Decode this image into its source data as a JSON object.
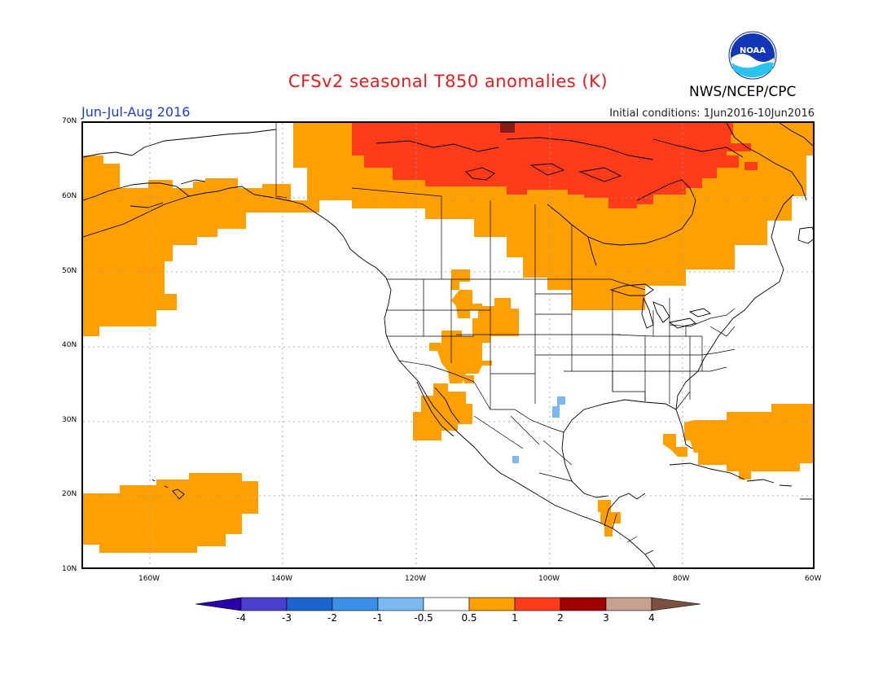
{
  "header": {
    "title": "CFSv2 seasonal T850 anomalies (K)",
    "title_color": "#e11d1d",
    "agency": "NWS/NCEP/CPC",
    "logo_text": "NOAA",
    "period": "Jun-Jul-Aug 2016",
    "period_color": "#1a3fd6",
    "initial_conditions": "Initial conditions: 1Jun2016-10Jun2016"
  },
  "map": {
    "lat_ticks": [
      "70N",
      "60N",
      "50N",
      "40N",
      "30N",
      "20N",
      "10N"
    ],
    "lon_ticks": [
      "160W",
      "140W",
      "120W",
      "100W",
      "80W",
      "60W"
    ],
    "lat_range": [
      10,
      70
    ],
    "lon_range": [
      -170,
      -60
    ],
    "regions": [
      {
        "name": "canada-arctic-warm",
        "class": "0.5 to 1"
      },
      {
        "name": "northern-canada-strong-warm",
        "class": "1 to 2"
      },
      {
        "name": "alaska-pacific-warm",
        "class": "0.5 to 1"
      },
      {
        "name": "hawaii-warm",
        "class": "0.5 to 1"
      },
      {
        "name": "atlantic-warm",
        "class": "0.5 to 1"
      },
      {
        "name": "western-us-warm",
        "class": "0.5 to 1"
      },
      {
        "name": "central-america-warm",
        "class": "0.5 to 1"
      },
      {
        "name": "texas-cool",
        "class": "-1 to -0.5"
      }
    ]
  },
  "colorbar": {
    "labels": [
      "-4",
      "-3",
      "-2",
      "-1",
      "-0.5",
      "0.5",
      "1",
      "2",
      "3",
      "4"
    ],
    "colors": [
      "#2a00a8",
      "#4a3fd0",
      "#1e64d0",
      "#3a90e6",
      "#7ab8f0",
      "#ffffff",
      "#ffa000",
      "#ff3c1a",
      "#a00000",
      "#c8a090",
      "#7a5040"
    ]
  }
}
